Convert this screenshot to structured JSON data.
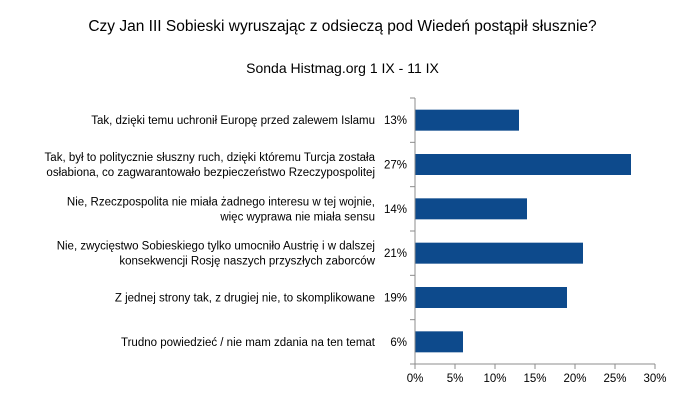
{
  "chart_data": {
    "type": "bar",
    "orientation": "horizontal",
    "title": "Czy Jan III Sobieski wyruszając z odsieczą pod Wiedeń postąpił słusznie?",
    "subtitle": "Sonda Histmag.org 1 IX - 11 IX",
    "categories": [
      [
        "Tak, dzięki temu uchronił Europę przed zalewem Islamu"
      ],
      [
        "Tak, był to politycznie słuszny ruch, dzięki któremu Turcja została",
        "osłabiona, co zagwarantowało bezpieczeństwo Rzeczypospolitej"
      ],
      [
        "Nie, Rzeczpospolita nie miała żadnego interesu w tej wojnie,",
        "więc wyprawa nie miała sensu"
      ],
      [
        "Nie, zwycięstwo Sobieskiego tylko umocniło Austrię i w dalszej",
        "konsekwencji Rosję naszych przyszłych zaborców"
      ],
      [
        "Z jednej strony tak, z drugiej nie, to skomplikowane"
      ],
      [
        "Trudno powiedzieć / nie mam zdania na ten temat"
      ]
    ],
    "values": [
      13,
      27,
      14,
      21,
      19,
      6
    ],
    "value_labels": [
      "13%",
      "27%",
      "14%",
      "21%",
      "19%",
      "6%"
    ],
    "xlim": [
      0,
      30
    ],
    "x_ticks": [
      "0%",
      "5%",
      "10%",
      "15%",
      "20%",
      "25%",
      "30%"
    ],
    "grid": false,
    "legend": "none",
    "bar_color": "#0d4a8c"
  }
}
